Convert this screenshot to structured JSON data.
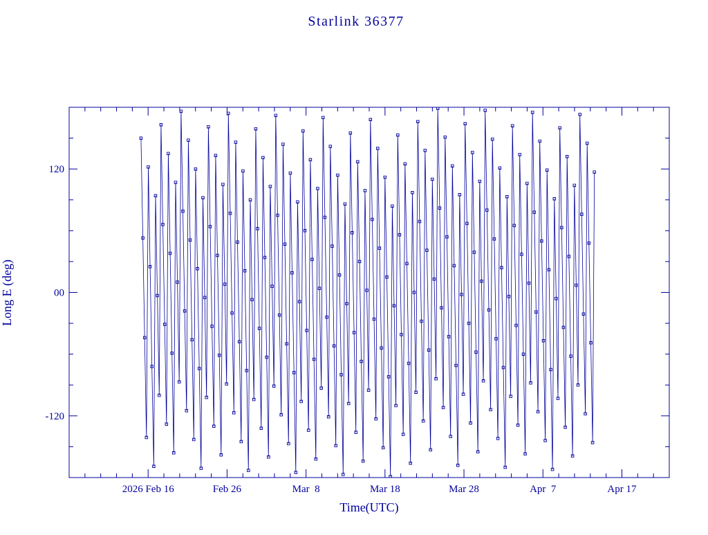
{
  "page": {
    "background": "#ffffff"
  },
  "chart_data": {
    "type": "line",
    "title": "Starlink 36377",
    "xlabel": "Time(UTC)",
    "ylabel": "Long E (deg)",
    "series_color": "#00009c",
    "marker": "open-square",
    "legend": "none",
    "grid": "off",
    "x_axis": {
      "unit": "days relative to first major tick",
      "lim": [
        -10,
        66
      ],
      "major_ticks": [
        {
          "day": 0,
          "label": "2026 Feb 16"
        },
        {
          "day": 10,
          "label": "Feb 26"
        },
        {
          "day": 20,
          "label": "Mar  8"
        },
        {
          "day": 30,
          "label": "Mar 18"
        },
        {
          "day": 40,
          "label": "Mar 28"
        },
        {
          "day": 50,
          "label": "Apr  7"
        },
        {
          "day": 60,
          "label": "Apr 17"
        }
      ],
      "minor_tick_step": 2
    },
    "y_axis": {
      "lim": [
        -180,
        180
      ],
      "major_ticks": [
        {
          "value": 120,
          "label": "120"
        },
        {
          "value": 0,
          "label": "00"
        },
        {
          "value": -120,
          "label": "-120"
        }
      ],
      "minor_tick_step": 30
    },
    "sampling": {
      "start_day": -0.9,
      "step_day": 0.2306
    },
    "longitudes_deg": [
      150,
      53,
      -44,
      -141,
      122,
      25,
      -72,
      -169,
      94,
      -3,
      -100,
      163,
      66,
      -31,
      -128,
      135,
      38,
      -59,
      -156,
      107,
      10,
      -87,
      176,
      79,
      -18,
      -115,
      148,
      51,
      -46,
      -143,
      120,
      23,
      -74,
      -171,
      92,
      -5,
      -102,
      161,
      64,
      -33,
      -130,
      133,
      36,
      -61,
      -158,
      105,
      8,
      -89,
      174,
      77,
      -20,
      -117,
      146,
      49,
      -48,
      -145,
      118,
      21,
      -76,
      -173,
      90,
      -7,
      -104,
      159,
      62,
      -35,
      -132,
      131,
      34,
      -63,
      -160,
      103,
      6,
      -91,
      172,
      75,
      -22,
      -119,
      144,
      47,
      -50,
      -147,
      116,
      19,
      -78,
      -175,
      88,
      -9,
      -106,
      157,
      60,
      -37,
      -134,
      129,
      32,
      -65,
      -162,
      101,
      4,
      -93,
      170,
      73,
      -24,
      -121,
      142,
      45,
      -52,
      -149,
      114,
      17,
      -80,
      -177,
      86,
      -11,
      -108,
      155,
      58,
      -39,
      -136,
      127,
      30,
      -67,
      -164,
      99,
      2,
      -95,
      168,
      71,
      -26,
      -123,
      140,
      43,
      -54,
      -151,
      112,
      15,
      -82,
      -179,
      84,
      -13,
      -110,
      153,
      56,
      -41,
      -138,
      125,
      28,
      -69,
      -166,
      97,
      0,
      -97,
      166,
      69,
      -28,
      -125,
      138,
      41,
      -56,
      -153,
      110,
      13,
      -84,
      179,
      82,
      -15,
      -112,
      151,
      54,
      -43,
      -140,
      123,
      26,
      -71,
      -168,
      95,
      -2,
      -99,
      164,
      67,
      -30,
      -127,
      136,
      39,
      -58,
      -155,
      108,
      11,
      -86,
      177,
      80,
      -17,
      -114,
      149,
      52,
      -45,
      -142,
      121,
      24,
      -73,
      -170,
      93,
      -4,
      -101,
      162,
      65,
      -32,
      -129,
      134,
      37,
      -60,
      -157,
      106,
      9,
      -88,
      175,
      78,
      -19,
      -116,
      147,
      50,
      -47,
      -144,
      119,
      22,
      -75,
      -172,
      91,
      -6,
      -103,
      160,
      63,
      -34,
      -131,
      132,
      35,
      -62,
      -159,
      104,
      7,
      -90,
      173,
      76,
      -21,
      -118,
      145,
      48,
      -49,
      -146,
      117
    ]
  }
}
